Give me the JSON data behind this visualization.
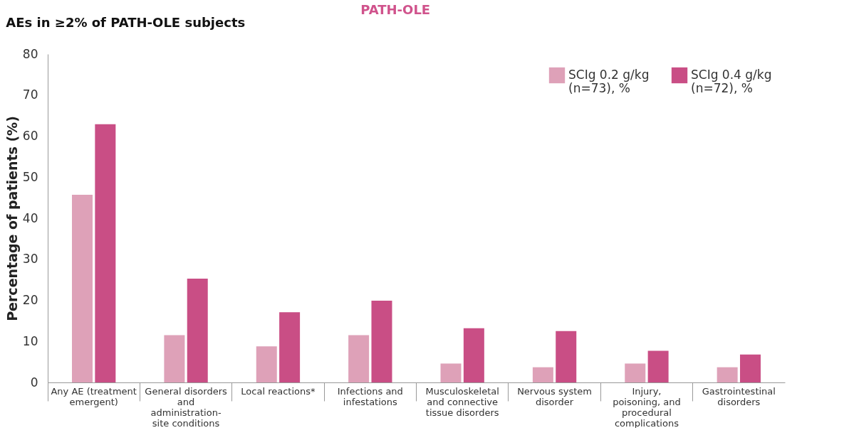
{
  "chart_data": {
    "type": "bar",
    "title": "PATH-OLE",
    "subtitle": "AEs in ≥2% of PATH-OLE subjects",
    "ylabel": "Percentage of patients (%)",
    "categories": [
      "Any AE (treatment emergent)",
      "General disorders and administration-site conditions",
      "Local reactions*",
      "Infections and infestations",
      "Musculoskeletal and connective tissue disorders",
      "Nervous system disorder",
      "Injury, poisoning, and procedural complications",
      "Gastrointestinal disorders"
    ],
    "series": [
      {
        "name": "SCIg 0.2 g/kg (n=73), %",
        "color": "#dea1b8",
        "values": [
          45.7,
          11.5,
          8.8,
          11.5,
          4.6,
          3.7,
          4.6,
          3.7
        ]
      },
      {
        "name": "SCIg 0.4 g/kg (n=72), %",
        "color": "#c94e85",
        "values": [
          62.9,
          25.3,
          17.1,
          19.9,
          13.2,
          12.5,
          7.7,
          6.8
        ]
      }
    ],
    "ylim": [
      0,
      80
    ],
    "yticks": [
      0,
      10,
      20,
      30,
      40,
      50,
      60,
      70,
      80
    ],
    "grid": false,
    "legend": "top right"
  }
}
